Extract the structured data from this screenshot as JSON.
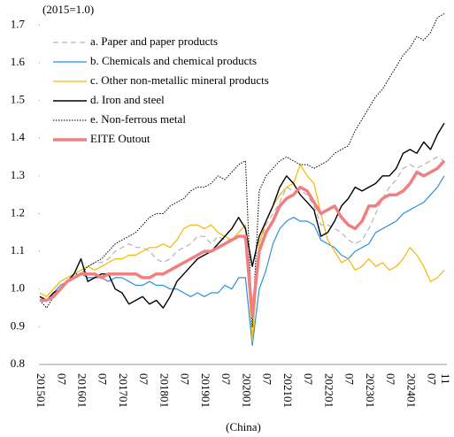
{
  "chart_data": {
    "type": "line",
    "annotation": "(2015=1.0)",
    "x_label": "(China)",
    "categories": [
      "201501",
      null,
      null,
      "07",
      null,
      null,
      "201601",
      null,
      null,
      "07",
      null,
      null,
      "201701",
      null,
      null,
      "07",
      null,
      null,
      "201801",
      null,
      null,
      "07",
      null,
      null,
      "201901",
      null,
      null,
      "07",
      null,
      null,
      "202001",
      null,
      null,
      "07",
      null,
      null,
      "202101",
      null,
      null,
      "07",
      null,
      null,
      "202201",
      null,
      null,
      "07",
      null,
      null,
      "202301",
      null,
      null,
      "07",
      null,
      null,
      "202401",
      null,
      null,
      "07",
      null,
      "11"
    ],
    "ylim": [
      0.8,
      1.75
    ],
    "yticks": [
      0.8,
      0.9,
      {
        "value": 1,
        "label": "1.0"
      },
      1.1,
      1.2,
      1.3,
      1.4,
      1.5,
      1.6,
      1.7
    ],
    "grid": false,
    "legend": "top-left",
    "series": [
      {
        "name": "a. Paper and paper products",
        "color": "#a6a6a6",
        "style": "dashed",
        "line_width": 1,
        "values": [
          0.97,
          0.98,
          1.0,
          1.02,
          1.03,
          1.04,
          1.05,
          1.06,
          1.07,
          1.07,
          1.08,
          1.1,
          1.11,
          1.12,
          1.11,
          1.11,
          1.1,
          1.08,
          1.07,
          1.08,
          1.1,
          1.11,
          1.12,
          1.14,
          1.14,
          1.12,
          1.14,
          1.13,
          1.13,
          1.14,
          1.13,
          0.86,
          1.12,
          1.17,
          1.2,
          1.23,
          1.27,
          1.26,
          1.26,
          1.25,
          1.22,
          1.17,
          1.17,
          1.16,
          1.15,
          1.13,
          1.12,
          1.13,
          1.16,
          1.2,
          1.24,
          1.27,
          1.29,
          1.32,
          1.33,
          1.32,
          1.33,
          1.34,
          1.35,
          1.34
        ]
      },
      {
        "name": "b. Chemicals and chemical products",
        "color": "#2e8fdf",
        "style": "solid",
        "line_width": 1.2,
        "values": [
          0.98,
          0.97,
          0.99,
          1.01,
          1.02,
          1.03,
          1.04,
          1.03,
          1.03,
          1.03,
          1.02,
          1.03,
          1.03,
          1.02,
          1.01,
          1.01,
          1.02,
          1.01,
          1.01,
          1.0,
          1.0,
          0.99,
          0.98,
          0.99,
          0.98,
          0.99,
          0.99,
          1.01,
          1.0,
          1.03,
          1.03,
          0.85,
          1.0,
          1.05,
          1.12,
          1.16,
          1.18,
          1.19,
          1.18,
          1.18,
          1.17,
          1.13,
          1.12,
          1.11,
          1.09,
          1.08,
          1.1,
          1.11,
          1.12,
          1.15,
          1.16,
          1.17,
          1.18,
          1.2,
          1.21,
          1.22,
          1.23,
          1.25,
          1.27,
          1.3
        ]
      },
      {
        "name": "c. Other non-metallic mineral products",
        "color": "#f5b800",
        "style": "solid",
        "line_width": 1.2,
        "values": [
          0.99,
          0.98,
          1.0,
          1.02,
          1.03,
          1.04,
          1.05,
          1.06,
          1.05,
          1.06,
          1.07,
          1.08,
          1.08,
          1.09,
          1.09,
          1.1,
          1.11,
          1.11,
          1.12,
          1.11,
          1.13,
          1.16,
          1.17,
          1.17,
          1.16,
          1.17,
          1.15,
          1.14,
          1.13,
          1.15,
          1.17,
          0.86,
          1.12,
          1.18,
          1.22,
          1.25,
          1.27,
          1.28,
          1.33,
          1.3,
          1.28,
          1.2,
          1.13,
          1.1,
          1.07,
          1.08,
          1.05,
          1.06,
          1.08,
          1.06,
          1.07,
          1.05,
          1.06,
          1.08,
          1.11,
          1.09,
          1.06,
          1.02,
          1.03,
          1.05
        ]
      },
      {
        "name": "d. Iron and steel",
        "color": "#000000",
        "style": "solid",
        "line_width": 1.4,
        "values": [
          0.98,
          0.97,
          0.99,
          1.0,
          1.02,
          1.04,
          1.08,
          1.02,
          1.03,
          1.04,
          1.04,
          1.0,
          0.99,
          0.96,
          0.97,
          0.98,
          0.96,
          0.97,
          0.95,
          0.98,
          1.02,
          1.04,
          1.06,
          1.08,
          1.09,
          1.1,
          1.12,
          1.14,
          1.16,
          1.19,
          1.16,
          1.06,
          1.14,
          1.18,
          1.22,
          1.27,
          1.3,
          1.28,
          1.25,
          1.23,
          1.21,
          1.14,
          1.15,
          1.18,
          1.22,
          1.24,
          1.27,
          1.26,
          1.27,
          1.28,
          1.3,
          1.3,
          1.32,
          1.36,
          1.37,
          1.36,
          1.39,
          1.37,
          1.41,
          1.44
        ]
      },
      {
        "name": "e. Non-ferrous metal",
        "color": "#000000",
        "style": "dotted",
        "line_width": 1,
        "values": [
          0.97,
          0.95,
          0.98,
          1.0,
          1.02,
          1.04,
          1.04,
          1.06,
          1.07,
          1.08,
          1.1,
          1.12,
          1.13,
          1.14,
          1.15,
          1.17,
          1.19,
          1.2,
          1.2,
          1.22,
          1.23,
          1.24,
          1.26,
          1.27,
          1.27,
          1.28,
          1.3,
          1.29,
          1.31,
          1.33,
          1.34,
          0.9,
          1.26,
          1.3,
          1.32,
          1.34,
          1.35,
          1.34,
          1.33,
          1.33,
          1.32,
          1.33,
          1.34,
          1.36,
          1.37,
          1.38,
          1.42,
          1.45,
          1.48,
          1.51,
          1.53,
          1.56,
          1.59,
          1.62,
          1.64,
          1.67,
          1.66,
          1.68,
          1.72,
          1.73
        ]
      },
      {
        "name": "EITE Outout",
        "color": "#f08080",
        "style": "solid",
        "line_width": 3.5,
        "values": [
          0.97,
          0.97,
          0.98,
          1.0,
          1.02,
          1.03,
          1.04,
          1.04,
          1.04,
          1.03,
          1.04,
          1.04,
          1.04,
          1.04,
          1.04,
          1.03,
          1.03,
          1.04,
          1.04,
          1.05,
          1.06,
          1.07,
          1.08,
          1.09,
          1.1,
          1.1,
          1.11,
          1.12,
          1.13,
          1.14,
          1.14,
          0.93,
          1.1,
          1.15,
          1.18,
          1.22,
          1.24,
          1.25,
          1.27,
          1.26,
          1.23,
          1.2,
          1.21,
          1.22,
          1.19,
          1.17,
          1.16,
          1.18,
          1.22,
          1.22,
          1.24,
          1.25,
          1.25,
          1.26,
          1.28,
          1.31,
          1.3,
          1.31,
          1.32,
          1.34
        ]
      }
    ]
  }
}
